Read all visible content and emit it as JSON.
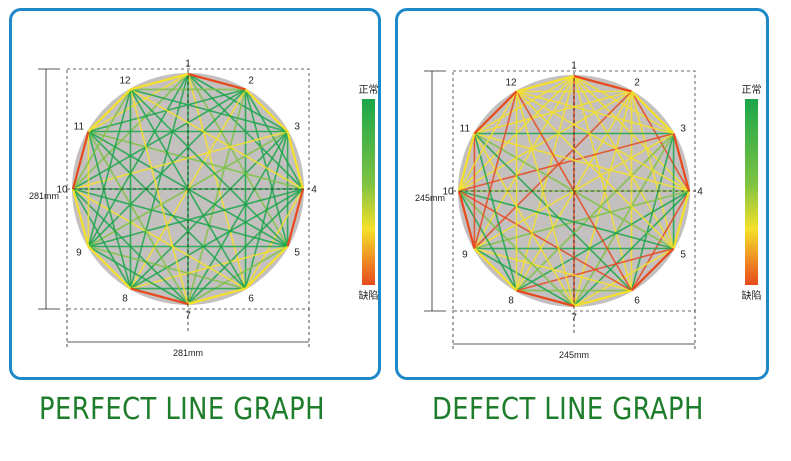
{
  "panels": [
    {
      "caption": "PERFECT LINE GRAPH",
      "width_label": "281mm",
      "height_label": "281mm",
      "scale_top": "正常",
      "scale_bottom": "缺陷",
      "node_labels": [
        "1",
        "2",
        "3",
        "4",
        "5",
        "6",
        "7",
        "8",
        "9",
        "10",
        "11",
        "12"
      ],
      "quality": "perfect"
    },
    {
      "caption": "DEFECT LINE GRAPH",
      "width_label": "245mm",
      "height_label": "245mm",
      "scale_top": "正常",
      "scale_bottom": "缺陷",
      "node_labels": [
        "1",
        "2",
        "3",
        "4",
        "5",
        "6",
        "7",
        "8",
        "9",
        "10",
        "11",
        "12"
      ],
      "quality": "defect"
    }
  ],
  "colors": {
    "normal": "#1aa64a",
    "good": "#7cc242",
    "warn": "#f5e02a",
    "defect": "#e8491d",
    "accent_border": "#1e88c8",
    "caption": "#1e7d2a"
  }
}
